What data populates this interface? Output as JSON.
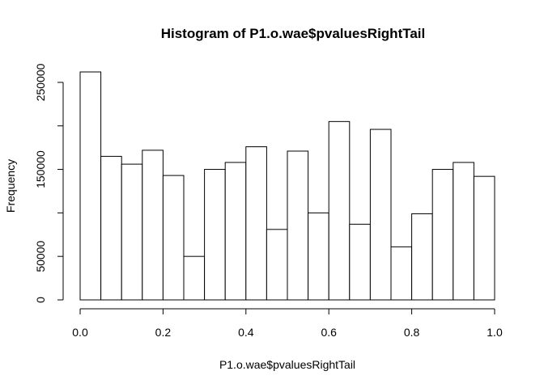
{
  "chart_data": {
    "type": "bar",
    "title": "Histogram of P1.o.wae$pvaluesRightTail",
    "xlabel": "P1.o.wae$pvaluesRightTail",
    "ylabel": "Frequency",
    "bin_edges": [
      0.0,
      0.05,
      0.1,
      0.15,
      0.2,
      0.25,
      0.3,
      0.35,
      0.4,
      0.45,
      0.5,
      0.55,
      0.6,
      0.65,
      0.7,
      0.75,
      0.8,
      0.85,
      0.9,
      0.95,
      1.0
    ],
    "values": [
      262000,
      165000,
      156000,
      172000,
      143000,
      50000,
      150000,
      158000,
      176000,
      81000,
      171000,
      100000,
      205000,
      87000,
      196000,
      61000,
      99000,
      150000,
      158000,
      142000
    ],
    "xlim": [
      0.0,
      1.0
    ],
    "ylim": [
      0,
      262000
    ],
    "x_ticks": [
      0.0,
      0.2,
      0.4,
      0.6,
      0.8,
      1.0
    ],
    "x_tick_labels": [
      "0.0",
      "0.2",
      "0.4",
      "0.6",
      "0.8",
      "1.0"
    ],
    "y_ticks": [
      0,
      50000,
      150000,
      250000
    ],
    "y_tick_labels": [
      "0",
      "50000",
      "150000",
      "250000"
    ],
    "y_minor_ticks": [
      100000,
      200000
    ],
    "grid": false,
    "colors": {
      "bar_fill": "#ffffff",
      "bar_stroke": "#000000"
    }
  }
}
